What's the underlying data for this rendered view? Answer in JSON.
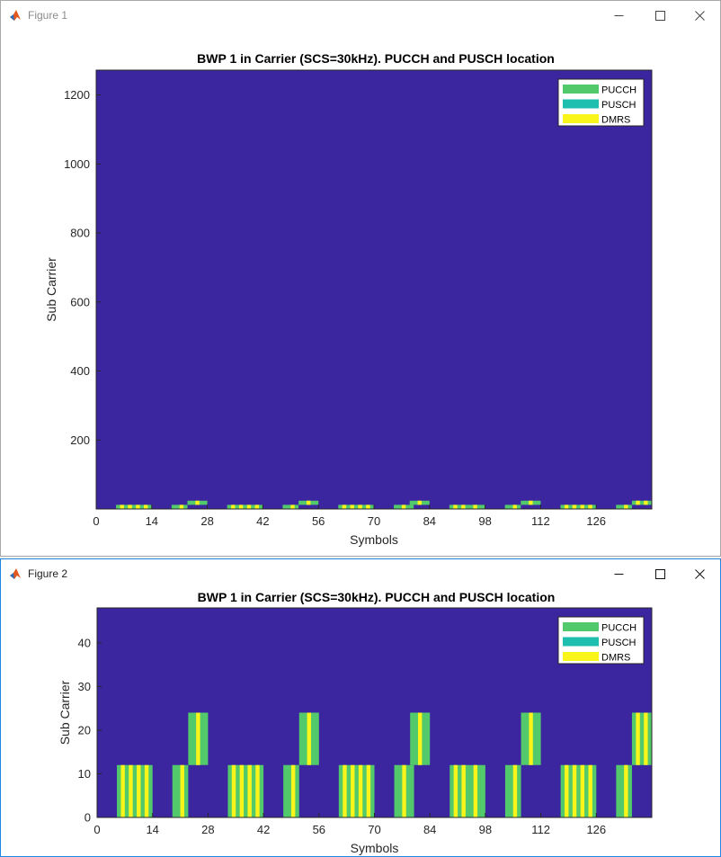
{
  "windows": [
    {
      "title": "Figure 1"
    },
    {
      "title": "Figure 2"
    }
  ],
  "icons": {
    "app": "matlab-logo-icon",
    "minimize": "minimize-icon",
    "maximize": "maximize-icon",
    "close": "close-icon"
  },
  "colors": {
    "background": "#3c26a0",
    "pucch": "#52c96a",
    "pusch": "#1ebfae",
    "dmrs": "#f9f51a"
  },
  "chart_data": [
    {
      "type": "heatmap",
      "title": "BWP 1 in Carrier (SCS=30kHz). PUCCH and PUSCH location",
      "xlabel": "Symbols",
      "ylabel": "Sub Carrier",
      "xlim": [
        0,
        140
      ],
      "ylim": [
        0,
        1272
      ],
      "xticks": [
        "0",
        "14",
        "28",
        "42",
        "56",
        "70",
        "84",
        "98",
        "112",
        "126"
      ],
      "yticks": [
        "200",
        "400",
        "600",
        "800",
        "1000",
        "1200"
      ],
      "ytick_values": [
        200,
        400,
        600,
        800,
        1000,
        1200
      ],
      "legend": {
        "placement": "top-right",
        "entries": [
          "PUCCH",
          "PUSCH",
          "DMRS"
        ]
      },
      "regions": [
        {
          "name": "PUCCH",
          "x": [
            5,
            14
          ],
          "y": [
            0,
            12
          ],
          "dmrs": [
            6,
            8,
            10,
            12
          ]
        },
        {
          "name": "PUCCH",
          "x": [
            19,
            23
          ],
          "y": [
            0,
            12
          ],
          "dmrs": [
            21
          ]
        },
        {
          "name": "PUCCH",
          "x": [
            23,
            28
          ],
          "y": [
            12,
            24
          ],
          "dmrs": [
            25
          ]
        },
        {
          "name": "PUCCH",
          "x": [
            33,
            42
          ],
          "y": [
            0,
            12
          ],
          "dmrs": [
            34,
            36,
            38,
            40
          ]
        },
        {
          "name": "PUCCH",
          "x": [
            47,
            51
          ],
          "y": [
            0,
            12
          ],
          "dmrs": [
            49
          ]
        },
        {
          "name": "PUCCH",
          "x": [
            51,
            56
          ],
          "y": [
            12,
            24
          ],
          "dmrs": [
            53
          ]
        },
        {
          "name": "PUCCH",
          "x": [
            61,
            70
          ],
          "y": [
            0,
            12
          ],
          "dmrs": [
            62,
            64,
            66,
            68
          ]
        },
        {
          "name": "PUCCH",
          "x": [
            75,
            80
          ],
          "y": [
            0,
            12
          ],
          "dmrs": [
            77
          ]
        },
        {
          "name": "PUCCH",
          "x": [
            79,
            84
          ],
          "y": [
            12,
            24
          ],
          "dmrs": [
            81
          ]
        },
        {
          "name": "PUCCH",
          "x": [
            89,
            98
          ],
          "y": [
            0,
            12
          ],
          "dmrs": [
            90,
            92,
            95
          ]
        },
        {
          "name": "PUCCH",
          "x": [
            103,
            107
          ],
          "y": [
            0,
            12
          ],
          "dmrs": [
            105
          ]
        },
        {
          "name": "PUCCH",
          "x": [
            107,
            112
          ],
          "y": [
            12,
            24
          ],
          "dmrs": [
            109
          ]
        },
        {
          "name": "PUCCH",
          "x": [
            117,
            126
          ],
          "y": [
            0,
            12
          ],
          "dmrs": [
            118,
            120,
            122,
            124
          ]
        },
        {
          "name": "PUCCH",
          "x": [
            131,
            135
          ],
          "y": [
            0,
            12
          ],
          "dmrs": [
            133
          ]
        },
        {
          "name": "PUCCH",
          "x": [
            135,
            140
          ],
          "y": [
            12,
            24
          ],
          "dmrs": [
            136,
            138
          ]
        }
      ]
    },
    {
      "type": "heatmap",
      "title": "BWP 1 in Carrier (SCS=30kHz). PUCCH and PUSCH location",
      "xlabel": "Symbols",
      "ylabel": "Sub Carrier",
      "xlim": [
        0,
        140
      ],
      "ylim": [
        0,
        48
      ],
      "xticks": [
        "0",
        "14",
        "28",
        "42",
        "56",
        "70",
        "84",
        "98",
        "112",
        "126"
      ],
      "yticks": [
        "0",
        "10",
        "20",
        "30",
        "40"
      ],
      "ytick_values": [
        0,
        10,
        20,
        30,
        40
      ],
      "legend": {
        "placement": "top-right",
        "entries": [
          "PUCCH",
          "PUSCH",
          "DMRS"
        ]
      },
      "regions": [
        {
          "name": "PUCCH",
          "x": [
            5,
            14
          ],
          "y": [
            0,
            12
          ],
          "dmrs": [
            6,
            8,
            10,
            12
          ]
        },
        {
          "name": "PUCCH",
          "x": [
            19,
            23
          ],
          "y": [
            0,
            12
          ],
          "dmrs": [
            21
          ]
        },
        {
          "name": "PUCCH",
          "x": [
            23,
            28
          ],
          "y": [
            12,
            24
          ],
          "dmrs": [
            25
          ]
        },
        {
          "name": "PUCCH",
          "x": [
            33,
            42
          ],
          "y": [
            0,
            12
          ],
          "dmrs": [
            34,
            36,
            38,
            40
          ]
        },
        {
          "name": "PUCCH",
          "x": [
            47,
            51
          ],
          "y": [
            0,
            12
          ],
          "dmrs": [
            49
          ]
        },
        {
          "name": "PUCCH",
          "x": [
            51,
            56
          ],
          "y": [
            12,
            24
          ],
          "dmrs": [
            53
          ]
        },
        {
          "name": "PUCCH",
          "x": [
            61,
            70
          ],
          "y": [
            0,
            12
          ],
          "dmrs": [
            62,
            64,
            66,
            68
          ]
        },
        {
          "name": "PUCCH",
          "x": [
            75,
            80
          ],
          "y": [
            0,
            12
          ],
          "dmrs": [
            77
          ]
        },
        {
          "name": "PUCCH",
          "x": [
            79,
            84
          ],
          "y": [
            12,
            24
          ],
          "dmrs": [
            81
          ]
        },
        {
          "name": "PUCCH",
          "x": [
            89,
            98
          ],
          "y": [
            0,
            12
          ],
          "dmrs": [
            90,
            92,
            95
          ]
        },
        {
          "name": "PUCCH",
          "x": [
            103,
            107
          ],
          "y": [
            0,
            12
          ],
          "dmrs": [
            105
          ]
        },
        {
          "name": "PUCCH",
          "x": [
            107,
            112
          ],
          "y": [
            12,
            24
          ],
          "dmrs": [
            109
          ]
        },
        {
          "name": "PUCCH",
          "x": [
            117,
            126
          ],
          "y": [
            0,
            12
          ],
          "dmrs": [
            118,
            120,
            122,
            124
          ]
        },
        {
          "name": "PUCCH",
          "x": [
            131,
            135
          ],
          "y": [
            0,
            12
          ],
          "dmrs": [
            133
          ]
        },
        {
          "name": "PUCCH",
          "x": [
            135,
            140
          ],
          "y": [
            12,
            24
          ],
          "dmrs": [
            136,
            138
          ]
        }
      ]
    }
  ]
}
